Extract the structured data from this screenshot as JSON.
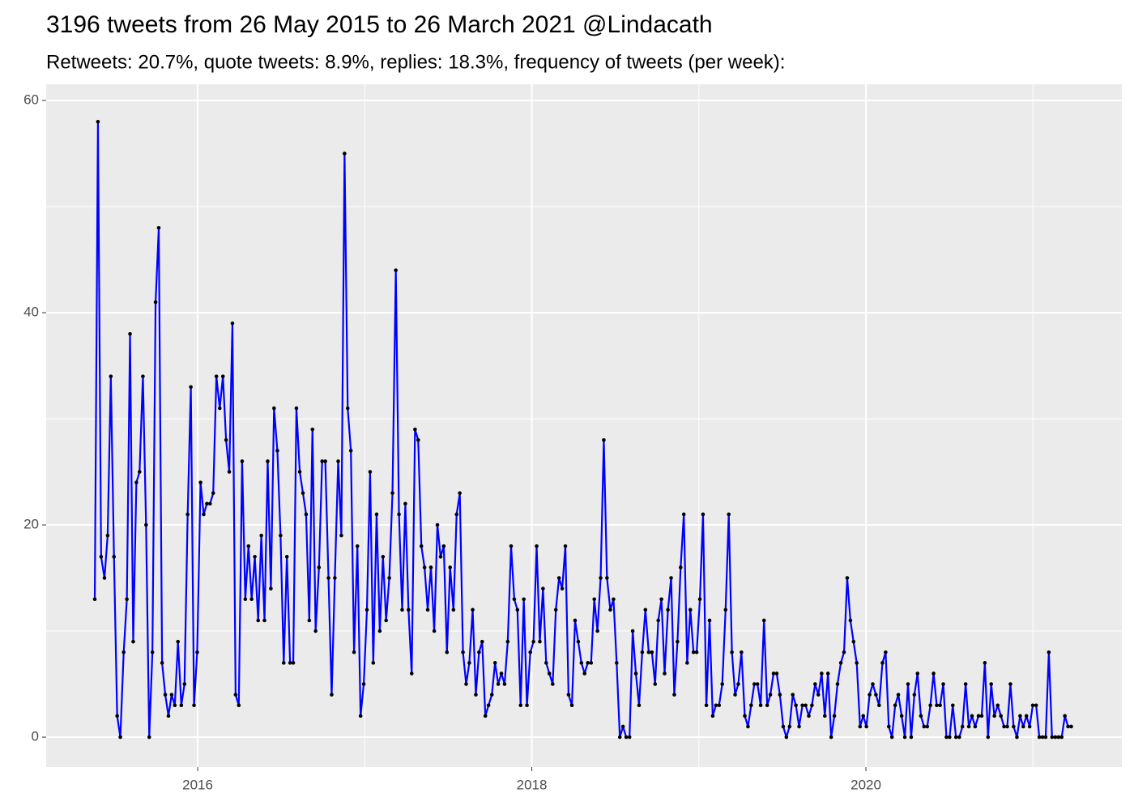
{
  "chart_data": {
    "type": "line",
    "title": "3196 tweets from 26 May 2015 to 26 March 2021 @Lindacath",
    "subtitle": "Retweets: 20.7%, quote tweets: 8.9%, replies: 18.3%, frequency of tweets (per week):",
    "x": [
      2015.384,
      2015.403,
      2015.422,
      2015.442,
      2015.461,
      2015.48,
      2015.499,
      2015.518,
      2015.537,
      2015.557,
      2015.576,
      2015.595,
      2015.614,
      2015.633,
      2015.652,
      2015.672,
      2015.691,
      2015.71,
      2015.729,
      2015.748,
      2015.767,
      2015.787,
      2015.806,
      2015.825,
      2015.844,
      2015.863,
      2015.882,
      2015.902,
      2015.921,
      2015.94,
      2015.959,
      2015.978,
      2015.997,
      2016.017,
      2016.036,
      2016.055,
      2016.074,
      2016.093,
      2016.112,
      2016.132,
      2016.151,
      2016.17,
      2016.189,
      2016.208,
      2016.227,
      2016.246,
      2016.266,
      2016.285,
      2016.304,
      2016.323,
      2016.342,
      2016.362,
      2016.381,
      2016.4,
      2016.419,
      2016.438,
      2016.457,
      2016.477,
      2016.496,
      2016.515,
      2016.534,
      2016.553,
      2016.572,
      2016.591,
      2016.611,
      2016.63,
      2016.649,
      2016.668,
      2016.687,
      2016.706,
      2016.726,
      2016.745,
      2016.764,
      2016.783,
      2016.802,
      2016.821,
      2016.841,
      2016.86,
      2016.879,
      2016.898,
      2016.917,
      2016.936,
      2016.956,
      2016.975,
      2016.994,
      2017.013,
      2017.032,
      2017.051,
      2017.071,
      2017.09,
      2017.109,
      2017.128,
      2017.147,
      2017.166,
      2017.186,
      2017.205,
      2017.224,
      2017.243,
      2017.262,
      2017.281,
      2017.301,
      2017.32,
      2017.339,
      2017.358,
      2017.377,
      2017.396,
      2017.416,
      2017.435,
      2017.454,
      2017.473,
      2017.492,
      2017.511,
      2017.531,
      2017.55,
      2017.569,
      2017.588,
      2017.607,
      2017.626,
      2017.646,
      2017.665,
      2017.684,
      2017.703,
      2017.722,
      2017.741,
      2017.761,
      2017.78,
      2017.799,
      2017.818,
      2017.837,
      2017.856,
      2017.876,
      2017.895,
      2017.914,
      2017.933,
      2017.952,
      2017.971,
      2017.991,
      2018.01,
      2018.029,
      2018.048,
      2018.067,
      2018.086,
      2018.105,
      2018.125,
      2018.144,
      2018.163,
      2018.182,
      2018.201,
      2018.22,
      2018.24,
      2018.259,
      2018.278,
      2018.297,
      2018.316,
      2018.335,
      2018.355,
      2018.374,
      2018.393,
      2018.412,
      2018.431,
      2018.45,
      2018.47,
      2018.489,
      2018.508,
      2018.527,
      2018.546,
      2018.565,
      2018.585,
      2018.604,
      2018.623,
      2018.642,
      2018.661,
      2018.68,
      2018.7,
      2018.719,
      2018.738,
      2018.757,
      2018.776,
      2018.795,
      2018.815,
      2018.834,
      2018.853,
      2018.872,
      2018.891,
      2018.91,
      2018.93,
      2018.949,
      2018.968,
      2018.987,
      2019.006,
      2019.025,
      2019.045,
      2019.064,
      2019.083,
      2019.102,
      2019.121,
      2019.14,
      2019.16,
      2019.179,
      2019.198,
      2019.217,
      2019.236,
      2019.255,
      2019.275,
      2019.294,
      2019.313,
      2019.332,
      2019.351,
      2019.37,
      2019.39,
      2019.409,
      2019.428,
      2019.447,
      2019.466,
      2019.485,
      2019.505,
      2019.524,
      2019.543,
      2019.562,
      2019.581,
      2019.6,
      2019.62,
      2019.639,
      2019.658,
      2019.677,
      2019.696,
      2019.715,
      2019.735,
      2019.754,
      2019.773,
      2019.792,
      2019.811,
      2019.83,
      2019.85,
      2019.869,
      2019.888,
      2019.907,
      2019.926,
      2019.945,
      2019.965,
      2019.984,
      2020.003,
      2020.022,
      2020.041,
      2020.06,
      2020.079,
      2020.099,
      2020.118,
      2020.137,
      2020.156,
      2020.175,
      2020.194,
      2020.214,
      2020.233,
      2020.252,
      2020.271,
      2020.29,
      2020.309,
      2020.329,
      2020.348,
      2020.367,
      2020.386,
      2020.405,
      2020.424,
      2020.444,
      2020.463,
      2020.482,
      2020.501,
      2020.52,
      2020.539,
      2020.559,
      2020.578,
      2020.597,
      2020.616,
      2020.635,
      2020.654,
      2020.674,
      2020.693,
      2020.712,
      2020.731,
      2020.75,
      2020.769,
      2020.789,
      2020.808,
      2020.827,
      2020.846,
      2020.865,
      2020.884,
      2020.904,
      2020.923,
      2020.942,
      2020.961,
      2020.98,
      2020.999,
      2021.019,
      2021.038,
      2021.057,
      2021.076,
      2021.095,
      2021.114,
      2021.134,
      2021.153,
      2021.172,
      2021.191,
      2021.21,
      2021.229
    ],
    "values": [
      13,
      58,
      17,
      15,
      19,
      34,
      17,
      2,
      0,
      8,
      13,
      38,
      9,
      24,
      25,
      34,
      20,
      0,
      8,
      41,
      48,
      7,
      4,
      2,
      4,
      3,
      9,
      3,
      5,
      21,
      33,
      3,
      8,
      24,
      21,
      22,
      22,
      23,
      34,
      31,
      34,
      28,
      25,
      39,
      4,
      3,
      26,
      13,
      18,
      13,
      17,
      11,
      19,
      11,
      26,
      14,
      31,
      27,
      19,
      7,
      17,
      7,
      7,
      31,
      25,
      23,
      21,
      11,
      29,
      10,
      16,
      26,
      26,
      15,
      4,
      15,
      26,
      19,
      55,
      31,
      27,
      8,
      18,
      2,
      5,
      12,
      25,
      7,
      21,
      10,
      17,
      11,
      15,
      23,
      44,
      21,
      12,
      22,
      12,
      6,
      29,
      28,
      18,
      16,
      12,
      16,
      10,
      20,
      17,
      18,
      8,
      16,
      12,
      21,
      23,
      8,
      5,
      7,
      12,
      4,
      8,
      9,
      2,
      3,
      4,
      7,
      5,
      6,
      5,
      9,
      18,
      13,
      12,
      3,
      13,
      3,
      8,
      9,
      18,
      9,
      14,
      7,
      6,
      5,
      12,
      15,
      14,
      18,
      4,
      3,
      11,
      9,
      7,
      6,
      7,
      7,
      13,
      10,
      15,
      28,
      15,
      12,
      13,
      7,
      0,
      1,
      0,
      0,
      10,
      6,
      3,
      8,
      12,
      8,
      8,
      5,
      11,
      13,
      6,
      12,
      15,
      4,
      9,
      16,
      21,
      7,
      12,
      8,
      8,
      13,
      21,
      3,
      11,
      2,
      3,
      3,
      5,
      12,
      21,
      8,
      4,
      5,
      8,
      2,
      1,
      3,
      5,
      5,
      3,
      11,
      3,
      4,
      6,
      6,
      4,
      1,
      0,
      1,
      4,
      3,
      1,
      3,
      3,
      2,
      3,
      5,
      4,
      6,
      2,
      6,
      0,
      2,
      5,
      7,
      8,
      15,
      11,
      9,
      7,
      1,
      2,
      1,
      4,
      5,
      4,
      3,
      7,
      8,
      1,
      0,
      3,
      4,
      2,
      0,
      5,
      0,
      4,
      6,
      2,
      1,
      1,
      3,
      6,
      3,
      3,
      5,
      0,
      0,
      3,
      0,
      0,
      1,
      5,
      1,
      2,
      1,
      2,
      2,
      7,
      0,
      5,
      2,
      3,
      2,
      1,
      1,
      5,
      1,
      0,
      2,
      1,
      2,
      1,
      3,
      3,
      0,
      0,
      0,
      8,
      0,
      0,
      0,
      0,
      2,
      1,
      1
    ],
    "color": "#0000ff",
    "point_color": "#000000",
    "xlim": [
      2015.093,
      2021.532
    ],
    "xticks": [
      2016,
      2018,
      2020
    ],
    "x_minor_ticks": [
      2017,
      2019,
      2021
    ],
    "ylim": [
      -2.82,
      61.53
    ],
    "yticks": [
      0,
      20,
      40,
      60
    ],
    "y_minor_ticks": [
      10,
      30,
      50
    ],
    "grid": true
  }
}
